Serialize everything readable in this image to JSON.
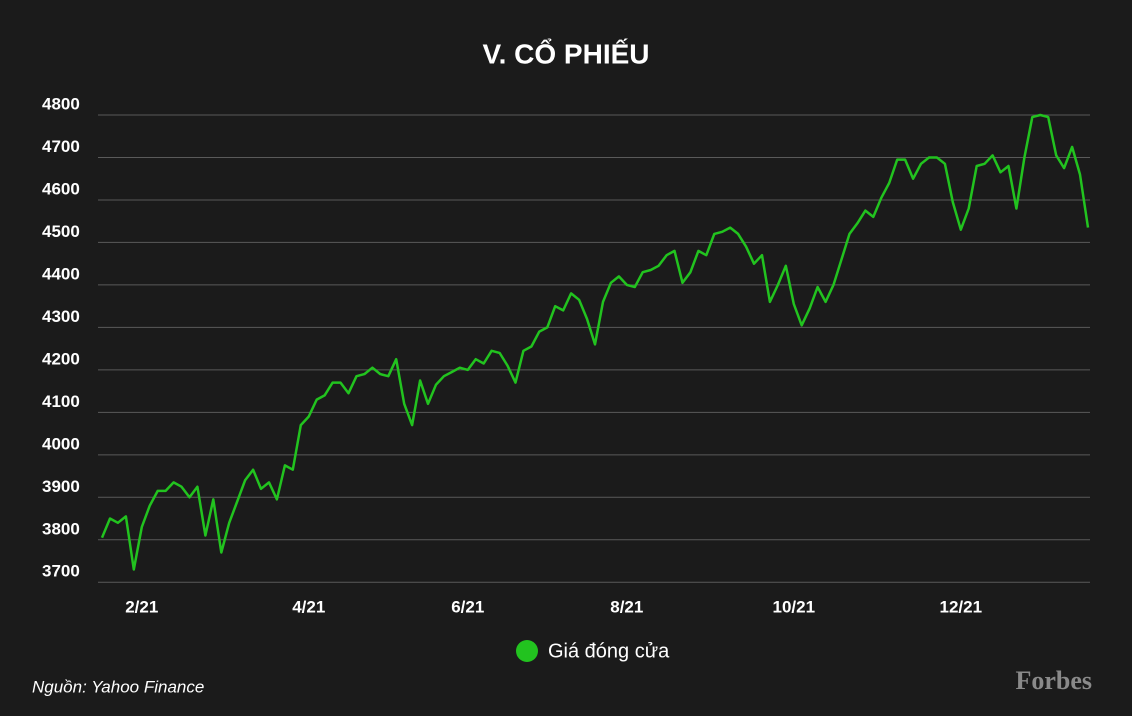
{
  "chart_data": {
    "type": "line",
    "title": "V. CỔ PHIẾU",
    "categories": [
      null,
      null,
      null,
      null,
      null,
      "2/21",
      null,
      null,
      null,
      null,
      null,
      null,
      null,
      null,
      null,
      null,
      null,
      null,
      null,
      null,
      null,
      null,
      null,
      null,
      null,
      null,
      "4/21",
      null,
      null,
      null,
      null,
      null,
      null,
      null,
      null,
      null,
      null,
      null,
      null,
      null,
      null,
      null,
      null,
      null,
      null,
      null,
      "6/21",
      null,
      null,
      null,
      null,
      null,
      null,
      null,
      null,
      null,
      null,
      null,
      null,
      null,
      null,
      null,
      null,
      null,
      null,
      null,
      "8/21",
      null,
      null,
      null,
      null,
      null,
      null,
      null,
      null,
      null,
      null,
      null,
      null,
      null,
      null,
      null,
      null,
      null,
      null,
      null,
      null,
      "10/21",
      null,
      null,
      null,
      null,
      null,
      null,
      null,
      null,
      null,
      null,
      null,
      null,
      null,
      null,
      null,
      null,
      null,
      null,
      null,
      null,
      "12/21",
      null,
      null,
      null,
      null,
      null,
      null,
      null,
      null,
      null,
      null,
      null,
      null,
      null,
      null,
      null,
      null
    ],
    "series": [
      {
        "name": "Giá đóng cửa",
        "color": "#22c31f",
        "values": [
          3805,
          3850,
          3840,
          3855,
          3730,
          3830,
          3880,
          3915,
          3915,
          3935,
          3925,
          3900,
          3925,
          3810,
          3895,
          3770,
          3840,
          3890,
          3940,
          3965,
          3920,
          3935,
          3895,
          3975,
          3965,
          4070,
          4090,
          4130,
          4140,
          4170,
          4170,
          4145,
          4185,
          4190,
          4205,
          4190,
          4185,
          4225,
          4120,
          4070,
          4175,
          4120,
          4165,
          4185,
          4195,
          4205,
          4200,
          4225,
          4215,
          4245,
          4240,
          4210,
          4170,
          4245,
          4255,
          4290,
          4300,
          4350,
          4340,
          4380,
          4365,
          4320,
          4260,
          4360,
          4405,
          4420,
          4400,
          4395,
          4430,
          4435,
          4445,
          4470,
          4480,
          4405,
          4430,
          4480,
          4470,
          4520,
          4525,
          4535,
          4520,
          4490,
          4450,
          4470,
          4360,
          4400,
          4445,
          4355,
          4305,
          4345,
          4395,
          4360,
          4400,
          4460,
          4520,
          4545,
          4575,
          4560,
          4605,
          4640,
          4695,
          4695,
          4650,
          4685,
          4700,
          4700,
          4685,
          4595,
          4530,
          4580,
          4680,
          4685,
          4705,
          4665,
          4680,
          4580,
          4700,
          4795,
          4800,
          4795,
          4705,
          4675,
          4725,
          4660,
          4535
        ]
      }
    ],
    "ylim": [
      3670,
      4800
    ],
    "yticks": [
      3700,
      3800,
      3900,
      4000,
      4100,
      4200,
      4300,
      4400,
      4500,
      4600,
      4700,
      4800
    ],
    "grid": true
  },
  "source": "Nguồn: Yahoo Finance",
  "brand": "Forbes"
}
